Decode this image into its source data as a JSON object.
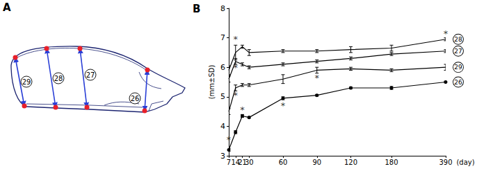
{
  "panel_a": {
    "label": "A",
    "measurements": [
      "29",
      "28",
      "27",
      "26"
    ]
  },
  "chart_data": {
    "type": "line",
    "title": "B",
    "y_label": "(mm±SD)",
    "x_label": "(day)",
    "categories": [
      "7",
      "14",
      "21",
      "30",
      null,
      null,
      null,
      null,
      "60",
      null,
      null,
      null,
      null,
      "90",
      null,
      null,
      null,
      null,
      "120",
      null,
      null,
      null,
      null,
      null,
      "180",
      null,
      null,
      null,
      null,
      null,
      null,
      null,
      "390"
    ],
    "ylim": [
      3,
      8
    ],
    "yticks": [
      3,
      4,
      5,
      6,
      7,
      8
    ],
    "grid": false,
    "series": [
      {
        "name": "28",
        "color": "#000000",
        "marker": "none",
        "values": [
          5.9,
          6.5,
          6.7,
          6.5,
          null,
          null,
          null,
          null,
          6.55,
          null,
          null,
          null,
          null,
          6.55,
          null,
          null,
          null,
          null,
          6.6,
          null,
          null,
          null,
          null,
          null,
          6.65,
          null,
          null,
          null,
          null,
          null,
          null,
          null,
          6.95
        ],
        "errors": [
          0.15,
          0.25,
          0.05,
          0.1,
          null,
          null,
          null,
          null,
          0.05,
          null,
          null,
          null,
          null,
          0.05,
          null,
          null,
          null,
          null,
          0.1,
          null,
          null,
          null,
          null,
          null,
          0.1,
          null,
          null,
          null,
          null,
          null,
          null,
          null,
          0.05
        ]
      },
      {
        "name": "27",
        "color": "#000000",
        "marker": "none",
        "values": [
          5.6,
          6.2,
          6.1,
          6.0,
          null,
          null,
          null,
          null,
          6.1,
          null,
          null,
          null,
          null,
          6.2,
          null,
          null,
          null,
          null,
          6.3,
          null,
          null,
          null,
          null,
          null,
          6.45,
          null,
          null,
          null,
          null,
          null,
          null,
          null,
          6.55
        ],
        "errors": [
          0.1,
          0.1,
          0.05,
          0.05,
          null,
          null,
          null,
          null,
          0.05,
          null,
          null,
          null,
          null,
          0.05,
          null,
          null,
          null,
          null,
          0.05,
          null,
          null,
          null,
          null,
          null,
          0.05,
          null,
          null,
          null,
          null,
          null,
          null,
          null,
          0.05
        ]
      },
      {
        "name": "29",
        "color": "#000000",
        "marker": "none",
        "values": [
          4.5,
          5.3,
          5.4,
          5.4,
          null,
          null,
          null,
          null,
          5.6,
          null,
          null,
          null,
          null,
          5.9,
          null,
          null,
          null,
          null,
          5.95,
          null,
          null,
          null,
          null,
          null,
          5.9,
          null,
          null,
          null,
          null,
          null,
          null,
          null,
          6.0
        ],
        "errors": [
          0.1,
          0.1,
          0.05,
          0.05,
          null,
          null,
          null,
          null,
          0.15,
          null,
          null,
          null,
          null,
          0.1,
          null,
          null,
          null,
          null,
          0.05,
          null,
          null,
          null,
          null,
          null,
          0.05,
          null,
          null,
          null,
          null,
          null,
          null,
          null,
          0.1
        ]
      },
      {
        "name": "26",
        "color": "#000000",
        "marker": "circle",
        "values": [
          3.2,
          3.8,
          4.35,
          4.3,
          null,
          null,
          null,
          null,
          4.95,
          null,
          null,
          null,
          null,
          5.05,
          null,
          null,
          null,
          null,
          5.3,
          null,
          null,
          null,
          null,
          null,
          5.3,
          null,
          null,
          null,
          null,
          null,
          null,
          null,
          5.5
        ],
        "errors": [
          0.05,
          0.05,
          0.05,
          0.03,
          null,
          null,
          null,
          null,
          0.05,
          null,
          null,
          null,
          null,
          0.03,
          null,
          null,
          null,
          null,
          0.03,
          null,
          null,
          null,
          null,
          null,
          0.05,
          null,
          null,
          null,
          null,
          null,
          null,
          null,
          0.03
        ]
      }
    ],
    "annotations": [
      {
        "x": "14",
        "y": 6.95,
        "text": "*"
      },
      {
        "x": "14",
        "y": 6.0,
        "text": "*"
      },
      {
        "x": "14",
        "y": 5.05,
        "text": "*"
      },
      {
        "x": "7",
        "y": 3.55,
        "text": "*"
      },
      {
        "x": "21",
        "y": 4.55,
        "text": "*"
      },
      {
        "x": "60",
        "y": 4.7,
        "text": "*"
      },
      {
        "x": "90",
        "y": 5.65,
        "text": "*"
      },
      {
        "x": "390",
        "y": 7.15,
        "text": "*"
      }
    ]
  }
}
